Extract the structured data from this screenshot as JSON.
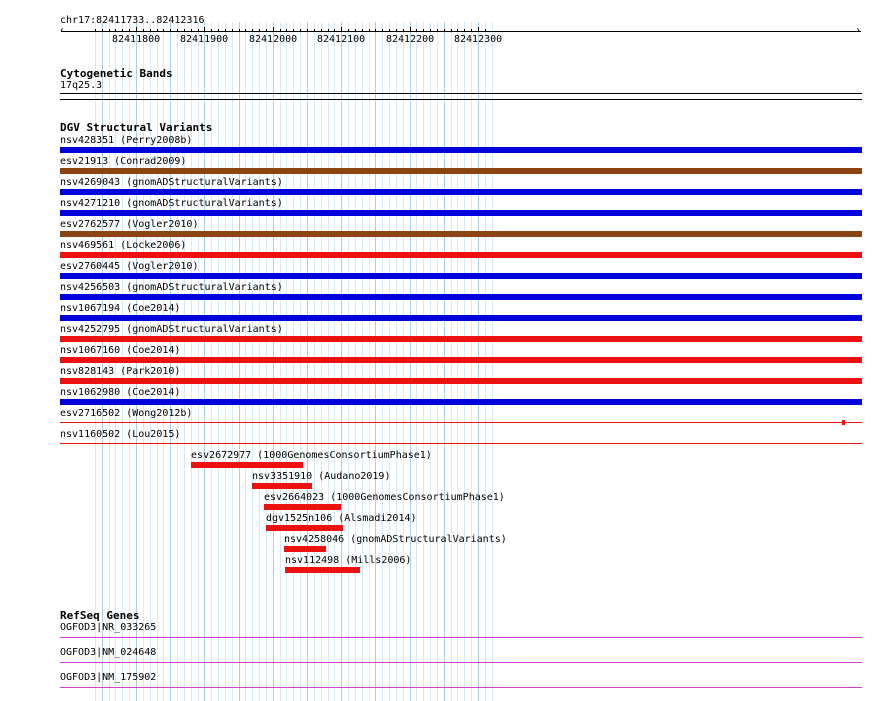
{
  "ruler": {
    "region": "chr17:82411733..82412316",
    "ticks": [
      "82411800",
      "82411900",
      "82412000",
      "82412100",
      "82412200",
      "82412300"
    ]
  },
  "cytoband": {
    "title": "Cytogenetic Bands",
    "band": "17q25.3"
  },
  "dgv": {
    "title": "DGV Structural Variants",
    "full_tracks": [
      {
        "label": "nsv428351 (Perry2008b)",
        "color": "#0000dd"
      },
      {
        "label": "esv21913 (Conrad2009)",
        "color": "#8b4513"
      },
      {
        "label": "nsv4269043 (gnomADStructuralVariants)",
        "color": "#0000dd"
      },
      {
        "label": "nsv4271210 (gnomADStructuralVariants)",
        "color": "#0000dd"
      },
      {
        "label": "esv2762577 (Vogler2010)",
        "color": "#8b4513"
      },
      {
        "label": "nsv469561 (Locke2006)",
        "color": "#ee1111"
      },
      {
        "label": "esv2760445 (Vogler2010)",
        "color": "#0000dd"
      },
      {
        "label": "nsv4256503 (gnomADStructuralVariants)",
        "color": "#0000dd"
      },
      {
        "label": "nsv1067194 (Coe2014)",
        "color": "#0000dd"
      },
      {
        "label": "nsv4252795 (gnomADStructuralVariants)",
        "color": "#ee1111"
      },
      {
        "label": "nsv1067160 (Coe2014)",
        "color": "#ee1111"
      },
      {
        "label": "nsv828143 (Park2010)",
        "color": "#ee1111"
      },
      {
        "label": "nsv1062980 (Coe2014)",
        "color": "#0000dd"
      }
    ],
    "thin_tracks": [
      {
        "label": "esv2716502 (Wong2012b)",
        "color": "#ee1111"
      },
      {
        "label": "nsv1160502 (Lou2015)",
        "color": "#ee1111"
      }
    ],
    "partial_tracks": [
      {
        "label": "esv2672977 (1000GenomesConsortiumPhase1)",
        "color": "#ee1111",
        "start": 82411880,
        "end": 82412044
      },
      {
        "label": "nsv3351910 (Audano2019)",
        "color": "#ee1111",
        "start": 82411969,
        "end": 82412057
      },
      {
        "label": "esv2664023 (1000GenomesConsortiumPhase1)",
        "color": "#ee1111",
        "start": 82411987,
        "end": 82412100
      },
      {
        "label": "dgv1525n106 (Alsmadi2014)",
        "color": "#ee1111",
        "start": 82411990,
        "end": 82412103
      },
      {
        "label": "nsv4258046 (gnomADStructuralVariants)",
        "color": "#ee1111",
        "start": 82412017,
        "end": 82412078
      },
      {
        "label": "nsv112498 (Mills2006)",
        "color": "#ee1111",
        "start": 82412018,
        "end": 82412128
      }
    ]
  },
  "refseq": {
    "title": "RefSeq Genes",
    "genes": [
      {
        "label": "OGFOD3|NR_033265",
        "color": "#cc44cc"
      },
      {
        "label": "OGFOD3|NM_024648",
        "color": "#cc44cc"
      },
      {
        "label": "OGFOD3|NM_175902",
        "color": "#cc44cc"
      }
    ]
  }
}
